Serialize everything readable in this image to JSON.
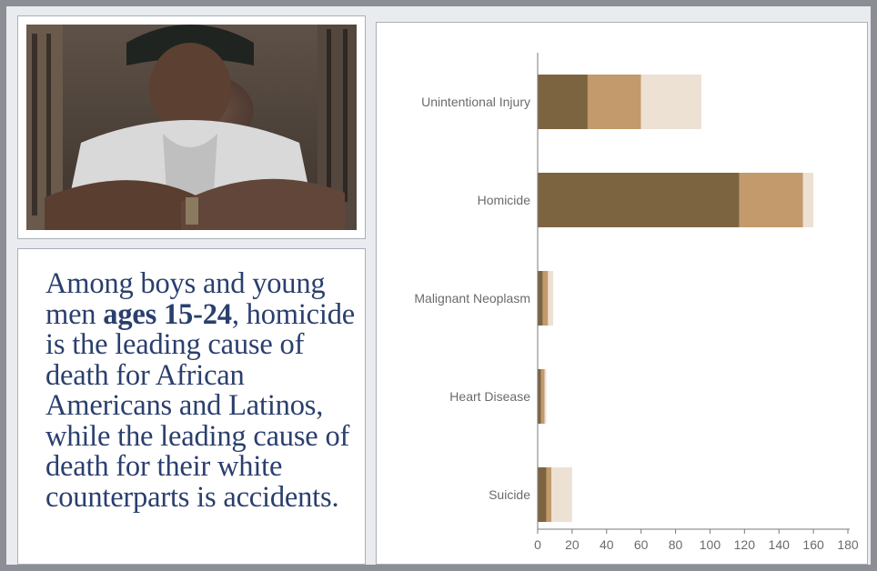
{
  "caption": {
    "part1": "Among boys and young men ",
    "bold": "ages 15-24",
    "part2": ", homicide is the leading cause of death for African Americans and Latinos, while the leading cause of death for their white counterparts is accidents."
  },
  "photo": {
    "description": ""
  },
  "colors": {
    "series1": "#7d6440",
    "series2": "#c29a6b",
    "series3": "#ede1d4",
    "axis": "#7a7a7a",
    "text": "#6b6b6b",
    "caption": "#2a3f6e"
  },
  "chart_data": {
    "type": "bar",
    "orientation": "horizontal",
    "stacked": true,
    "categories": [
      "Unintentional Injury",
      "Homicide",
      "Malignant Neoplasm",
      "Heart Disease",
      "Suicide"
    ],
    "series": [
      {
        "values": [
          29,
          117,
          3,
          2,
          5
        ]
      },
      {
        "values": [
          31,
          37,
          3,
          2,
          3
        ]
      },
      {
        "values": [
          35,
          6,
          3,
          1,
          12
        ]
      }
    ],
    "xlim": [
      0,
      180
    ],
    "xticks": [
      0,
      20,
      40,
      60,
      80,
      100,
      120,
      140,
      160,
      180
    ],
    "title": "",
    "xlabel": "",
    "ylabel": "",
    "grid": false,
    "legend": "none"
  }
}
